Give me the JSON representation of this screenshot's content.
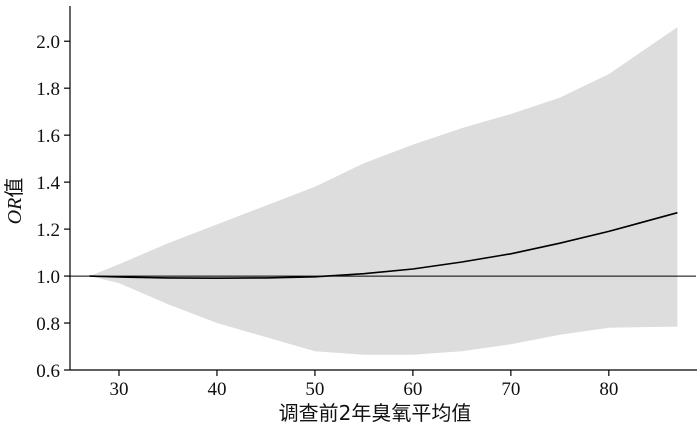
{
  "chart_data": {
    "type": "line",
    "title": "",
    "xlabel": "调查前2年臭氧平均值",
    "ylabel": "OR值",
    "ylabel_parts": {
      "italic": "OR",
      "normal": "值"
    },
    "xlim": [
      25,
      89
    ],
    "ylim": [
      0.6,
      2.15
    ],
    "xticks": [
      30,
      40,
      50,
      60,
      70,
      80
    ],
    "yticks": [
      0.6,
      0.8,
      1.0,
      1.2,
      1.4,
      1.6,
      1.8,
      2.0
    ],
    "ytick_labels": [
      "0.6",
      "0.8",
      "1.0",
      "1.2",
      "1.4",
      "1.6",
      "1.8",
      "2.0"
    ],
    "reference_line": 1.0,
    "grid": false,
    "series": [
      {
        "role": "estimate",
        "color": "#000000",
        "x": [
          27,
          30,
          35,
          40,
          45,
          50,
          55,
          60,
          65,
          70,
          75,
          80,
          87
        ],
        "y": [
          1.0,
          0.996,
          0.992,
          0.991,
          0.992,
          0.997,
          1.01,
          1.03,
          1.06,
          1.095,
          1.14,
          1.19,
          1.27
        ]
      }
    ],
    "confidence_band": {
      "color": "#dddddd",
      "x": [
        27,
        30,
        35,
        40,
        45,
        50,
        55,
        60,
        65,
        70,
        75,
        80,
        87
      ],
      "upper": [
        1.0,
        1.05,
        1.14,
        1.22,
        1.3,
        1.38,
        1.48,
        1.56,
        1.63,
        1.69,
        1.76,
        1.86,
        2.06
      ],
      "lower": [
        1.0,
        0.97,
        0.88,
        0.8,
        0.74,
        0.68,
        0.665,
        0.665,
        0.68,
        0.71,
        0.75,
        0.78,
        0.785
      ]
    }
  }
}
